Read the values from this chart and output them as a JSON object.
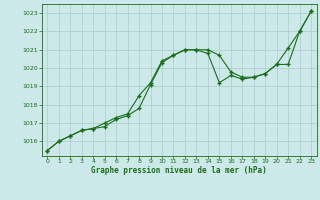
{
  "title": "Graphe pression niveau de la mer (hPa)",
  "bg_color": "#cce8e8",
  "grid_color": "#aacccc",
  "line_color": "#1a6e1a",
  "xlim": [
    -0.5,
    23.5
  ],
  "ylim": [
    1015.2,
    1023.5
  ],
  "yticks": [
    1016,
    1017,
    1018,
    1019,
    1020,
    1021,
    1022,
    1023
  ],
  "xticks": [
    0,
    1,
    2,
    3,
    4,
    5,
    6,
    7,
    8,
    9,
    10,
    11,
    12,
    13,
    14,
    15,
    16,
    17,
    18,
    19,
    20,
    21,
    22,
    23
  ],
  "line1_x": [
    0,
    1,
    2,
    3,
    4,
    5,
    6,
    7,
    8,
    9,
    10,
    11,
    12,
    13,
    14,
    15,
    16,
    17,
    18,
    19,
    20,
    21,
    22,
    23
  ],
  "line1_y": [
    1015.5,
    1016.0,
    1016.3,
    1016.6,
    1016.7,
    1016.8,
    1017.2,
    1017.4,
    1017.8,
    1019.1,
    1020.3,
    1020.7,
    1021.0,
    1021.0,
    1021.0,
    1020.7,
    1019.8,
    1019.5,
    1019.5,
    1019.7,
    1020.2,
    1021.1,
    1022.0,
    1023.1
  ],
  "line2_x": [
    0,
    1,
    2,
    3,
    4,
    5,
    6,
    7,
    8,
    9,
    10,
    11,
    12,
    13,
    14,
    15,
    16,
    17,
    18,
    19,
    20,
    21,
    22,
    23
  ],
  "line2_y": [
    1015.5,
    1016.0,
    1016.3,
    1016.6,
    1016.7,
    1017.0,
    1017.3,
    1017.5,
    1018.5,
    1019.2,
    1020.4,
    1020.7,
    1021.0,
    1021.0,
    1020.8,
    1019.2,
    1019.6,
    1019.4,
    1019.5,
    1019.7,
    1020.2,
    1020.2,
    1022.0,
    1023.1
  ]
}
